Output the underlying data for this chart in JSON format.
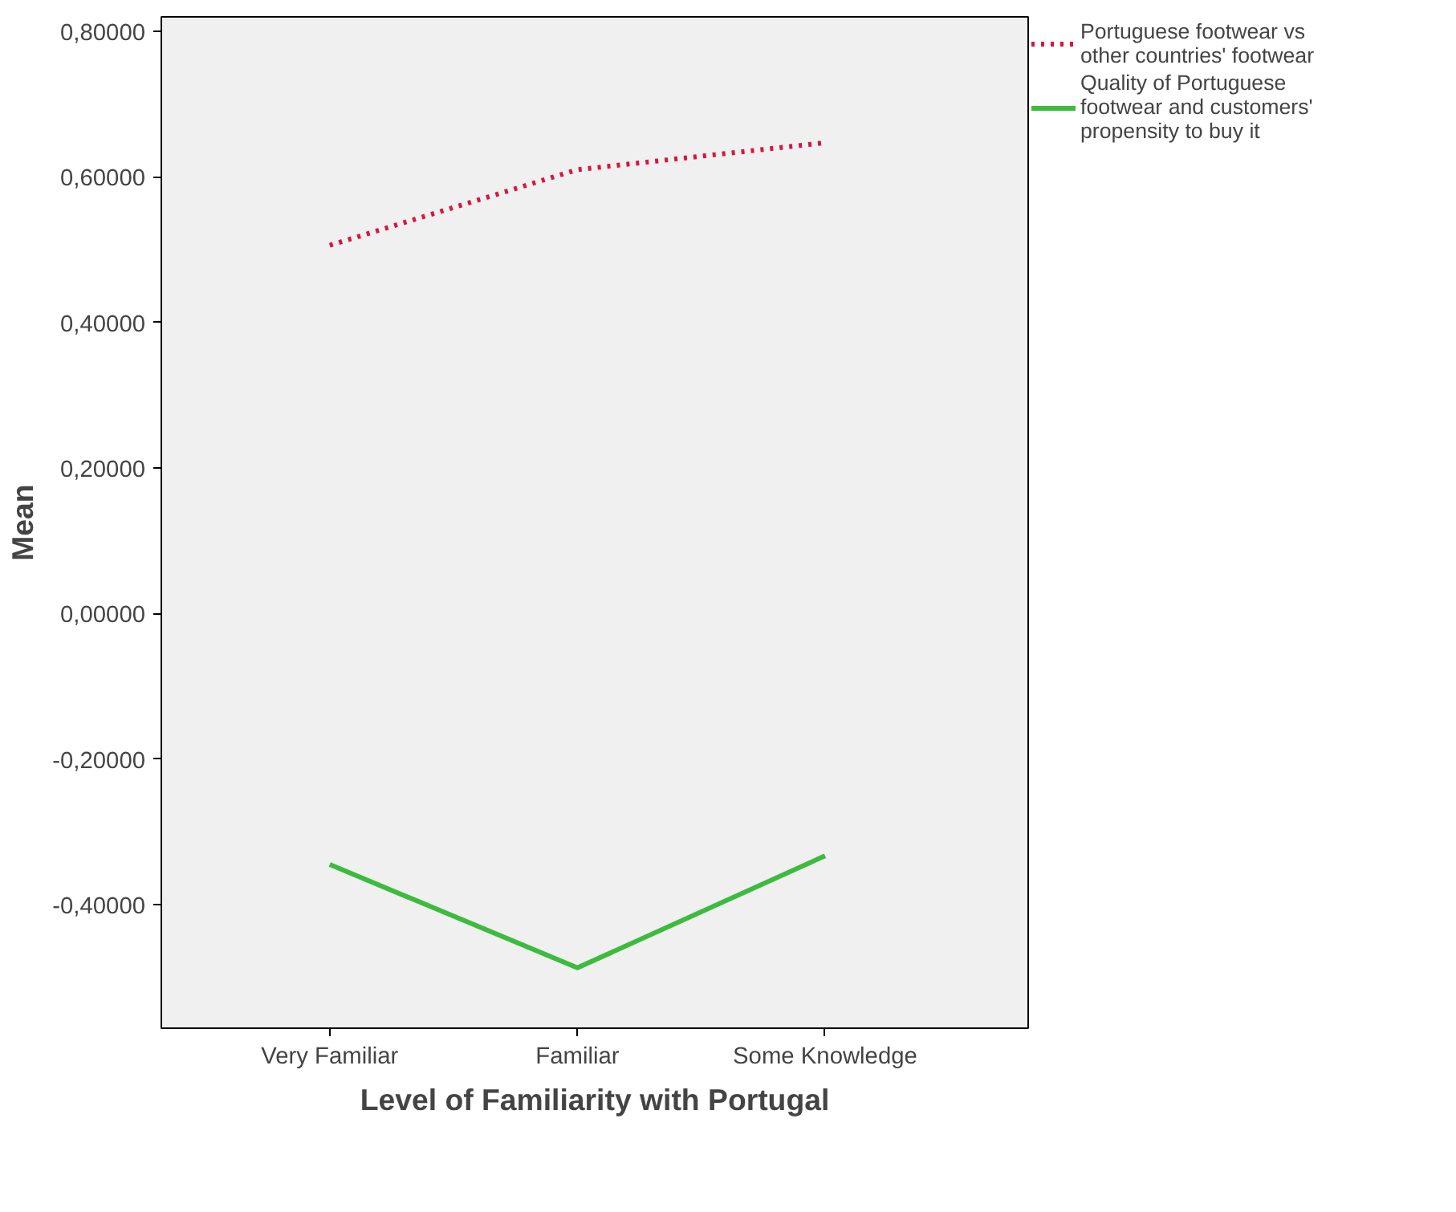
{
  "chart_data": {
    "type": "line",
    "xlabel": "Level of Familiarity with Portugal",
    "ylabel": "Mean",
    "categories": [
      "Very Familiar",
      "Familiar",
      "Some Knowledge"
    ],
    "series": [
      {
        "name": "Portuguese footwear vs other countries' footwear",
        "color": "#d8143f",
        "values": [
          0.506,
          0.61,
          0.647
        ],
        "line_style": "dotted"
      },
      {
        "name": "Quality of Portuguese footwear and customers' propensity to buy it",
        "color": "#3dbb3f",
        "values": [
          -0.345,
          -0.487,
          -0.333
        ],
        "line_style": "solid"
      }
    ],
    "ylim": [
      -0.57,
      0.82
    ],
    "yticks": [
      {
        "value": -0.4,
        "label": "-0,40000"
      },
      {
        "value": -0.2,
        "label": "-0,20000"
      },
      {
        "value": 0,
        "label": "0,00000"
      },
      {
        "value": 0.2,
        "label": "0,20000"
      },
      {
        "value": 0.4,
        "label": "0,40000"
      },
      {
        "value": 0.6,
        "label": "0,60000"
      },
      {
        "value": 0.8,
        "label": "0,80000"
      }
    ],
    "grid": false,
    "legend": "top right",
    "marker": "none"
  }
}
